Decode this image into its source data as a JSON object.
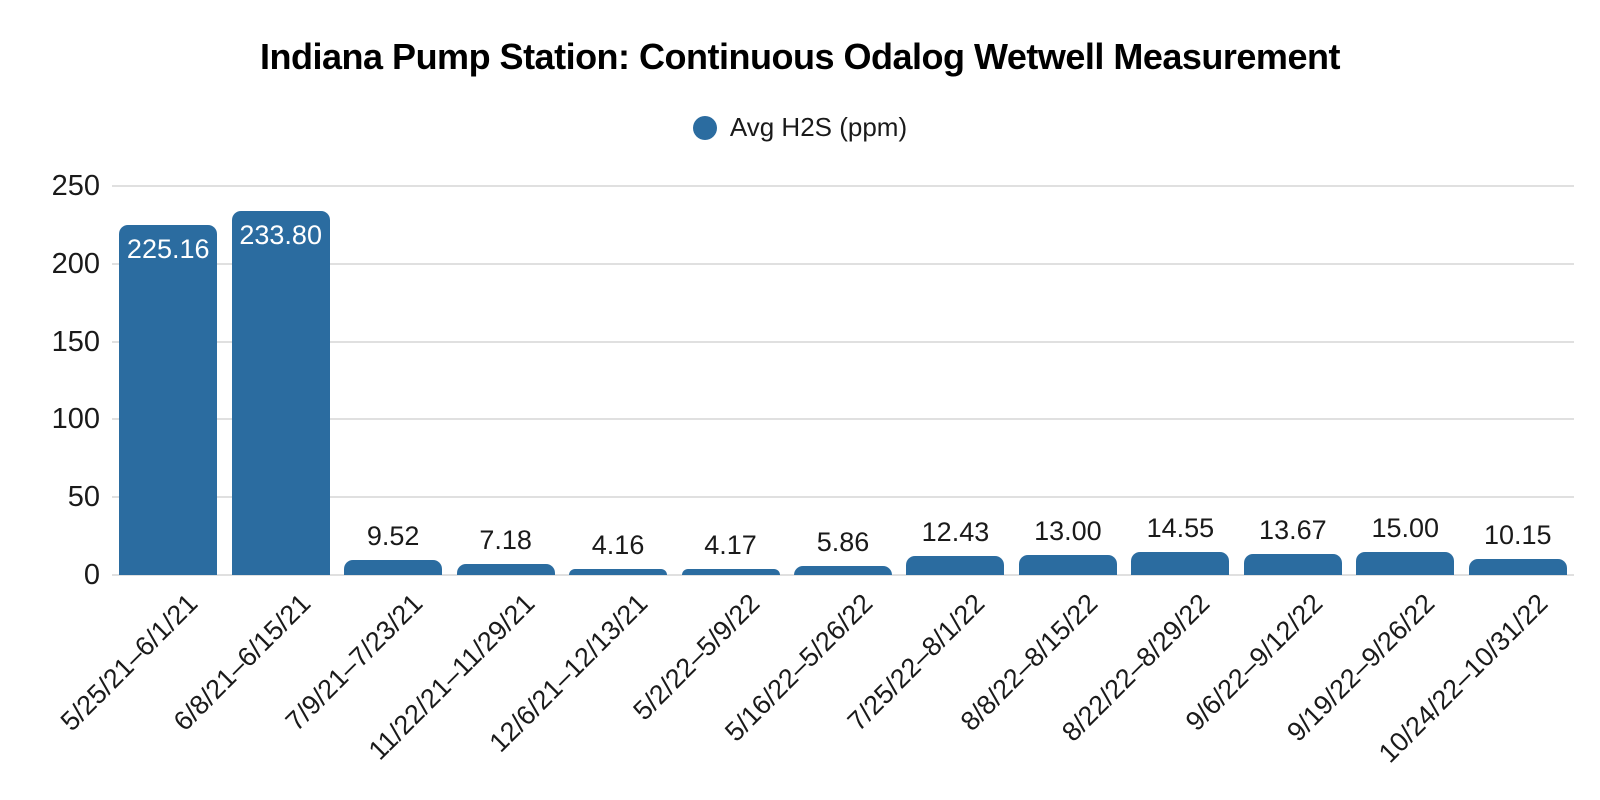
{
  "chart_data": {
    "type": "bar",
    "title": "Indiana Pump Station: Continuous Odalog Wetwell Measurement",
    "legend": {
      "label": "Avg H2S (ppm)"
    },
    "legend_position": "top-center",
    "xlabel": "",
    "ylabel": "",
    "ylim": [
      0,
      250
    ],
    "yticks": [
      0,
      50,
      100,
      150,
      200,
      250
    ],
    "grid": "horizontal",
    "categories": [
      "5/25/21–6/1/21",
      "6/8/21–6/15/21",
      "7/9/21–7/23/21",
      "11/22/21–11/29/21",
      "12/6/21–12/13/21",
      "5/2/22–5/9/22",
      "5/16/22–5/26/22",
      "7/25/22–8/1/22",
      "8/8/22–8/15/22",
      "8/22/22–8/29/22",
      "9/6/22–9/12/22",
      "9/19/22–9/26/22",
      "10/24/22–10/31/22"
    ],
    "series": [
      {
        "name": "Avg H2S (ppm)",
        "values": [
          225.16,
          233.8,
          9.52,
          7.18,
          4.16,
          4.17,
          5.86,
          12.43,
          13,
          14.55,
          13.67,
          15,
          10.15
        ],
        "value_labels": [
          "225.16",
          "233.80",
          "9.52",
          "7.18",
          "4.16",
          "4.17",
          "5.86",
          "12.43",
          "13.00",
          "14.55",
          "13.67",
          "15.00",
          "10.15"
        ]
      }
    ],
    "colors": {
      "bar": "#2b6ca0",
      "grid": "#e0e0e0",
      "text": "#1a1a1a",
      "value_label_inside": "#ffffff",
      "value_label_outside": "#1a1a1a"
    }
  }
}
